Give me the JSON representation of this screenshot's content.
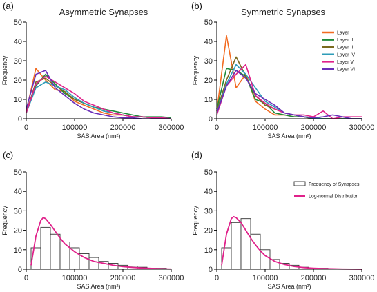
{
  "chart_data": [
    {
      "letter": "(a)",
      "type": "line",
      "title": "Asymmetric Synapses",
      "xlabel": "SAS Area (nm²)",
      "ylabel": "Frequency",
      "xlim": [
        0,
        300000
      ],
      "ylim": [
        0,
        50
      ],
      "x_ticks": [
        "0",
        "100000",
        "200000",
        "300000"
      ],
      "y_ticks": [
        "0",
        "10",
        "20",
        "30",
        "40",
        "50"
      ],
      "legend": null,
      "series": [
        {
          "color": "#F26B21",
          "x": [
            0,
            20000,
            40000,
            60000,
            80000,
            100000,
            120000,
            140000,
            160000,
            180000,
            200000,
            220000,
            240000,
            260000,
            280000,
            300000
          ],
          "y": [
            4,
            26,
            20,
            15,
            14,
            9,
            7,
            5,
            3,
            2,
            2,
            1,
            1,
            0.5,
            0.5,
            0
          ]
        },
        {
          "color": "#1E8A3A",
          "x": [
            0,
            20000,
            40000,
            60000,
            80000,
            100000,
            120000,
            140000,
            160000,
            180000,
            200000,
            220000,
            240000,
            260000,
            280000,
            300000
          ],
          "y": [
            3,
            17,
            23,
            18,
            13,
            10,
            8,
            6,
            5,
            4,
            3,
            2,
            1,
            1,
            1,
            0.5
          ]
        },
        {
          "color": "#7A6A1E",
          "x": [
            0,
            20000,
            40000,
            60000,
            80000,
            100000,
            120000,
            140000,
            160000,
            180000,
            200000,
            220000,
            240000,
            260000,
            280000,
            300000
          ],
          "y": [
            3,
            19,
            21,
            17,
            14,
            10,
            8,
            6,
            4,
            3,
            2,
            1,
            1,
            0.5,
            0.5,
            0
          ]
        },
        {
          "color": "#2E9CB8",
          "x": [
            0,
            20000,
            40000,
            60000,
            80000,
            100000,
            120000,
            140000,
            160000,
            180000,
            200000,
            220000,
            240000,
            260000,
            280000,
            300000
          ],
          "y": [
            3,
            16,
            19,
            17,
            15,
            11,
            8,
            6,
            4,
            3,
            2,
            1,
            1,
            0.5,
            0.5,
            0
          ]
        },
        {
          "color": "#E0218A",
          "x": [
            0,
            20000,
            40000,
            60000,
            80000,
            100000,
            120000,
            140000,
            160000,
            180000,
            200000,
            220000,
            240000,
            260000,
            280000,
            300000
          ],
          "y": [
            3,
            18,
            22,
            19,
            16,
            13,
            9,
            7,
            5,
            3,
            2,
            1,
            1,
            0.5,
            0.5,
            0
          ]
        },
        {
          "color": "#6A2DB8",
          "x": [
            0,
            20000,
            40000,
            60000,
            80000,
            100000,
            120000,
            140000,
            160000,
            180000,
            200000,
            220000,
            240000,
            260000,
            280000,
            300000
          ],
          "y": [
            5,
            23,
            25,
            16,
            12,
            8,
            5,
            3,
            2,
            1,
            0.5,
            0.5,
            0,
            0,
            0,
            0
          ]
        }
      ]
    },
    {
      "letter": "(b)",
      "type": "line",
      "title": "Symmetric Synapses",
      "xlabel": "SAS Area (nm²)",
      "ylabel": "Frequency",
      "xlim": [
        0,
        300000
      ],
      "ylim": [
        0,
        50
      ],
      "x_ticks": [
        "0",
        "100000",
        "200000",
        "300000"
      ],
      "y_ticks": [
        "0",
        "10",
        "20",
        "30",
        "40",
        "50"
      ],
      "legend": {
        "placement": "top-right"
      },
      "series": [
        {
          "name": "Layer I",
          "color": "#F26B21",
          "x": [
            0,
            20000,
            40000,
            60000,
            80000,
            100000,
            120000,
            140000,
            160000,
            180000,
            200000,
            220000,
            240000,
            260000,
            280000,
            300000
          ],
          "y": [
            4,
            43,
            16,
            23,
            9,
            5,
            2,
            2,
            1,
            1,
            0,
            0,
            0,
            0,
            0,
            0
          ]
        },
        {
          "name": "Layer II",
          "color": "#1E8A3A",
          "x": [
            0,
            20000,
            40000,
            60000,
            80000,
            100000,
            120000,
            140000,
            160000,
            180000,
            200000,
            220000,
            240000,
            260000,
            280000,
            300000
          ],
          "y": [
            5,
            26,
            25,
            22,
            10,
            8,
            3,
            2,
            1,
            1,
            0,
            0,
            0,
            0,
            0,
            0
          ]
        },
        {
          "name": "Layer III",
          "color": "#7A6A1E",
          "x": [
            0,
            20000,
            40000,
            60000,
            80000,
            100000,
            120000,
            140000,
            160000,
            180000,
            200000,
            220000,
            240000,
            260000,
            280000,
            300000
          ],
          "y": [
            4,
            20,
            32,
            22,
            12,
            7,
            5,
            3,
            2,
            1,
            0.5,
            0,
            0,
            0,
            0,
            0
          ]
        },
        {
          "name": "Layer IV",
          "color": "#2E9CB8",
          "x": [
            0,
            20000,
            40000,
            60000,
            80000,
            100000,
            120000,
            140000,
            160000,
            180000,
            200000,
            220000,
            240000,
            260000,
            280000,
            300000
          ],
          "y": [
            3,
            18,
            28,
            23,
            16,
            9,
            6,
            3,
            2,
            1,
            0.5,
            0,
            0,
            0,
            0,
            0
          ]
        },
        {
          "name": "Layer V",
          "color": "#E0218A",
          "x": [
            0,
            20000,
            40000,
            60000,
            80000,
            100000,
            120000,
            140000,
            160000,
            180000,
            200000,
            220000,
            240000,
            260000,
            280000,
            300000
          ],
          "y": [
            2,
            17,
            23,
            28,
            12,
            8,
            5,
            3,
            2,
            2,
            1,
            4,
            0,
            1,
            1,
            1
          ]
        },
        {
          "name": "Layer VI",
          "color": "#6A2DB8",
          "x": [
            0,
            20000,
            40000,
            60000,
            80000,
            100000,
            120000,
            140000,
            160000,
            180000,
            200000,
            220000,
            240000,
            260000,
            280000,
            300000
          ],
          "y": [
            3,
            17,
            25,
            21,
            13,
            10,
            7,
            3,
            2,
            1,
            0.5,
            1,
            2,
            1,
            0,
            0
          ]
        }
      ]
    },
    {
      "letter": "(c)",
      "type": "bar",
      "title": "",
      "xlabel": "SAS Area (nm²)",
      "ylabel": "Frequency",
      "xlim": [
        0,
        300000
      ],
      "ylim": [
        0,
        50
      ],
      "x_ticks": [
        "0",
        "100000",
        "200000",
        "300000"
      ],
      "y_ticks": [
        "0",
        "10",
        "20",
        "30",
        "40",
        "50"
      ],
      "legend": null,
      "bin_width": 20000,
      "bin_starts": [
        10000,
        30000,
        50000,
        70000,
        90000,
        110000,
        130000,
        150000,
        170000,
        190000,
        210000,
        230000,
        250000,
        270000
      ],
      "values": [
        11,
        21.5,
        18,
        14,
        11,
        8,
        6,
        4,
        3,
        2,
        1.5,
        1,
        0.5,
        0.5
      ],
      "curve": {
        "color": "#E0218A",
        "x": [
          10000,
          20000,
          30000,
          35000,
          40000,
          50000,
          60000,
          70000,
          80000,
          90000,
          100000,
          120000,
          140000,
          160000,
          180000,
          200000,
          220000,
          240000,
          260000,
          280000,
          300000
        ],
        "y": [
          2,
          17,
          25,
          26.5,
          26,
          23,
          19.5,
          16,
          13,
          11,
          9,
          6,
          4,
          3,
          2,
          1.3,
          0.9,
          0.6,
          0.4,
          0.2,
          0.1
        ]
      }
    },
    {
      "letter": "(d)",
      "type": "bar",
      "title": "",
      "xlabel": "SAS Area (nm²)",
      "ylabel": "Frequency",
      "xlim": [
        0,
        300000
      ],
      "ylim": [
        0,
        50
      ],
      "x_ticks": [
        "0",
        "100000",
        "200000",
        "300000"
      ],
      "y_ticks": [
        "0",
        "10",
        "20",
        "30",
        "40",
        "50"
      ],
      "legend": {
        "placement": "top-right",
        "entries": [
          {
            "kind": "box",
            "label": "Frequency of Synapses"
          },
          {
            "kind": "line",
            "label": "Log-normal Distribution",
            "color": "#E0218A"
          }
        ]
      },
      "bin_width": 20000,
      "bin_starts": [
        10000,
        30000,
        50000,
        70000,
        90000,
        110000,
        130000,
        150000,
        170000,
        190000,
        210000,
        230000,
        250000,
        270000
      ],
      "values": [
        11,
        24,
        26,
        18,
        10,
        5,
        3,
        2,
        1,
        0.5,
        0.5,
        0,
        0,
        0
      ],
      "curve": {
        "color": "#E0218A",
        "x": [
          10000,
          20000,
          30000,
          35000,
          40000,
          50000,
          60000,
          70000,
          80000,
          90000,
          100000,
          120000,
          140000,
          160000,
          180000,
          200000,
          220000,
          240000,
          260000,
          280000,
          300000
        ],
        "y": [
          2,
          18,
          26,
          27,
          26.5,
          24,
          20,
          16,
          12.5,
          9.5,
          7,
          4,
          2.4,
          1.4,
          0.8,
          0.5,
          0.3,
          0.2,
          0.1,
          0.05,
          0
        ]
      }
    }
  ]
}
